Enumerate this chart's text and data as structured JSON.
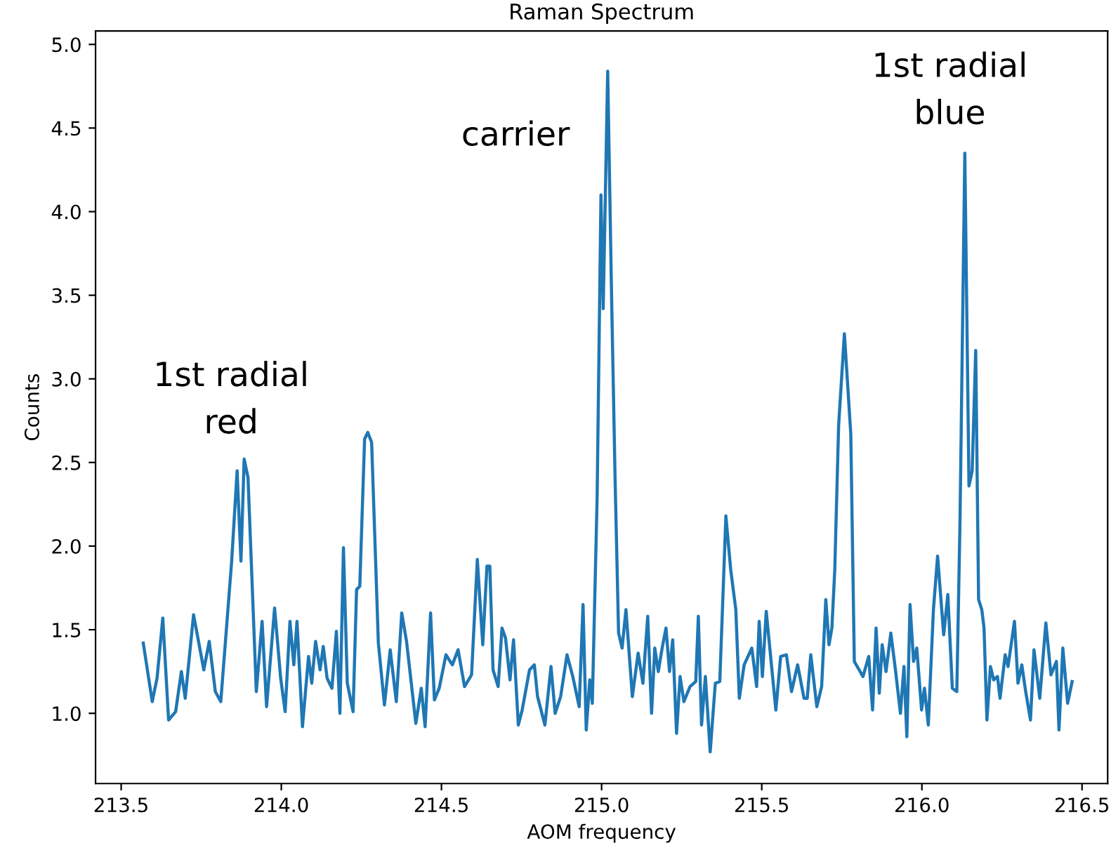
{
  "chart_data": {
    "type": "line",
    "title": "Raman Spectrum",
    "xlabel": "AOM frequency",
    "ylabel": "Counts",
    "xlim": [
      213.42,
      216.58
    ],
    "ylim": [
      0.58,
      5.08
    ],
    "xticks": [
      {
        "value": 213.5,
        "label": "213.5"
      },
      {
        "value": 214.0,
        "label": "214.0"
      },
      {
        "value": 214.5,
        "label": "214.5"
      },
      {
        "value": 215.0,
        "label": "215.0"
      },
      {
        "value": 215.5,
        "label": "215.5"
      },
      {
        "value": 216.0,
        "label": "216.0"
      },
      {
        "value": 216.5,
        "label": "216.5"
      }
    ],
    "yticks": [
      {
        "value": 1.0,
        "label": "1.0"
      },
      {
        "value": 1.5,
        "label": "1.5"
      },
      {
        "value": 2.0,
        "label": "2.0"
      },
      {
        "value": 2.5,
        "label": "2.5"
      },
      {
        "value": 3.0,
        "label": "3.0"
      },
      {
        "value": 3.5,
        "label": "3.5"
      },
      {
        "value": 4.0,
        "label": "4.0"
      },
      {
        "value": 4.5,
        "label": "4.5"
      },
      {
        "value": 5.0,
        "label": "5.0"
      }
    ],
    "grid": false,
    "legend": false,
    "annotations": [
      "1st radial\nred",
      "carrier",
      "1st radial\nblue"
    ],
    "series": [
      {
        "color": "#1f77b4",
        "x": [
          213.569,
          213.597,
          213.612,
          213.63,
          213.648,
          213.67,
          213.688,
          213.7,
          213.726,
          213.758,
          213.775,
          213.794,
          213.811,
          213.845,
          213.862,
          213.874,
          213.884,
          213.896,
          213.922,
          213.94,
          213.954,
          213.979,
          213.998,
          214.012,
          214.027,
          214.039,
          214.049,
          214.066,
          214.085,
          214.095,
          214.107,
          214.121,
          214.131,
          214.143,
          214.158,
          214.172,
          214.183,
          214.194,
          214.206,
          214.224,
          214.235,
          214.245,
          214.26,
          214.27,
          214.282,
          214.303,
          214.322,
          214.34,
          214.359,
          214.376,
          214.391,
          214.42,
          214.437,
          214.449,
          214.466,
          214.478,
          214.493,
          214.514,
          214.534,
          214.552,
          214.572,
          214.594,
          214.612,
          214.629,
          214.642,
          214.651,
          214.661,
          214.677,
          214.689,
          214.7,
          214.714,
          214.725,
          214.74,
          214.752,
          214.775,
          214.79,
          214.8,
          214.823,
          214.842,
          214.855,
          214.872,
          214.892,
          214.91,
          214.93,
          214.942,
          214.952,
          214.963,
          214.971,
          214.986,
          214.998,
          215.005,
          215.019,
          215.031,
          215.042,
          215.053,
          215.064,
          215.076,
          215.096,
          215.114,
          215.129,
          215.144,
          215.156,
          215.166,
          215.177,
          215.189,
          215.201,
          215.212,
          215.222,
          215.234,
          215.245,
          215.257,
          215.276,
          215.294,
          215.302,
          215.312,
          215.324,
          215.339,
          215.355,
          215.369,
          215.388,
          215.403,
          215.419,
          215.43,
          215.445,
          215.469,
          215.484,
          215.492,
          215.502,
          215.514,
          215.544,
          215.559,
          215.577,
          215.593,
          215.612,
          215.632,
          215.642,
          215.653,
          215.672,
          215.687,
          215.7,
          215.71,
          215.719,
          215.728,
          215.74,
          215.758,
          215.778,
          215.789,
          215.798,
          215.816,
          215.834,
          215.846,
          215.857,
          215.867,
          215.876,
          215.888,
          215.903,
          215.918,
          215.933,
          215.944,
          215.953,
          215.963,
          215.974,
          215.984,
          215.999,
          216.008,
          216.02,
          216.036,
          216.049,
          216.068,
          216.081,
          216.095,
          216.109,
          216.119,
          216.134,
          216.147,
          216.157,
          216.168,
          216.177,
          216.187,
          216.194,
          216.203,
          216.214,
          216.224,
          216.236,
          216.244,
          216.26,
          216.269,
          216.289,
          216.3,
          216.312,
          216.324,
          216.339,
          216.35,
          216.368,
          216.387,
          216.403,
          216.42,
          216.428,
          216.44,
          216.455,
          216.469
        ],
        "values": [
          1.42,
          1.07,
          1.21,
          1.57,
          0.96,
          1.01,
          1.25,
          1.09,
          1.59,
          1.26,
          1.43,
          1.13,
          1.07,
          1.91,
          2.45,
          1.91,
          2.52,
          2.41,
          1.13,
          1.55,
          1.04,
          1.63,
          1.21,
          1.01,
          1.55,
          1.29,
          1.55,
          0.92,
          1.34,
          1.18,
          1.43,
          1.26,
          1.4,
          1.21,
          1.15,
          1.49,
          1.0,
          1.99,
          1.18,
          1.01,
          1.74,
          1.76,
          2.64,
          2.68,
          2.62,
          1.42,
          1.05,
          1.38,
          1.07,
          1.6,
          1.43,
          0.94,
          1.15,
          0.92,
          1.6,
          1.08,
          1.15,
          1.35,
          1.29,
          1.38,
          1.16,
          1.23,
          1.92,
          1.41,
          1.88,
          1.88,
          1.26,
          1.16,
          1.51,
          1.45,
          1.2,
          1.44,
          0.93,
          1.02,
          1.26,
          1.29,
          1.1,
          0.93,
          1.28,
          1.0,
          1.1,
          1.35,
          1.22,
          1.04,
          1.65,
          0.9,
          1.2,
          1.06,
          2.29,
          4.1,
          3.42,
          4.84,
          3.51,
          2.41,
          1.48,
          1.39,
          1.62,
          1.1,
          1.36,
          1.18,
          1.58,
          1.0,
          1.39,
          1.25,
          1.39,
          1.51,
          1.25,
          1.44,
          0.88,
          1.22,
          1.07,
          1.16,
          1.19,
          1.58,
          0.93,
          1.22,
          0.77,
          1.18,
          1.19,
          2.18,
          1.86,
          1.62,
          1.09,
          1.29,
          1.39,
          1.16,
          1.55,
          1.22,
          1.61,
          1.02,
          1.34,
          1.35,
          1.13,
          1.29,
          1.09,
          1.09,
          1.35,
          1.04,
          1.16,
          1.68,
          1.41,
          1.51,
          1.86,
          2.72,
          3.27,
          2.67,
          1.31,
          1.28,
          1.22,
          1.34,
          1.02,
          1.51,
          1.12,
          1.41,
          1.25,
          1.48,
          1.25,
          1.0,
          1.28,
          0.86,
          1.65,
          1.31,
          1.39,
          1.02,
          1.15,
          0.93,
          1.62,
          1.94,
          1.47,
          1.71,
          1.15,
          1.13,
          2.15,
          4.35,
          2.36,
          2.45,
          3.17,
          1.68,
          1.62,
          1.51,
          0.96,
          1.28,
          1.2,
          1.22,
          1.09,
          1.35,
          1.28,
          1.55,
          1.18,
          1.29,
          1.13,
          0.96,
          1.38,
          1.09,
          1.54,
          1.23,
          1.31,
          0.9,
          1.39,
          1.06,
          1.19
        ]
      }
    ]
  }
}
